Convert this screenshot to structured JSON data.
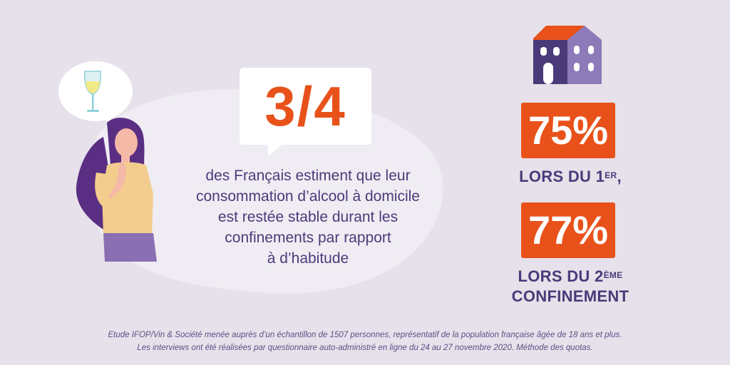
{
  "headline": "3/4",
  "main_text": [
    "des Français estiment que leur",
    "consommation d’alcool à domicile",
    "est restée stable durant les",
    "confinements par rapport",
    "à d’habitude"
  ],
  "stats": [
    {
      "value": "75%",
      "label_prefix": "LORS DU 1",
      "label_sup": "ER",
      "label_suffix": ","
    },
    {
      "value": "77%",
      "label_prefix": "LORS DU 2",
      "label_sup": "ÈME",
      "label_line2": "CONFINEMENT"
    }
  ],
  "footnote": [
    "Etude IFOP/Vin & Société menée auprès d’un échantillon de 1507 personnes, représentatif de la population française âgée de 18 ans et plus.",
    "Les interviews ont été réalisées par questionnaire auto-administré en ligne du 24 au 27 novembre 2020. Méthode des quotas."
  ],
  "colors": {
    "background": "#e6e1ea",
    "accent": "#e8521a",
    "text": "#4b3a7a",
    "blob": "#efedf3"
  },
  "icons": {
    "thought": "wine-glass-icon",
    "house": "house-icon",
    "person": "woman-thinking-illustration"
  }
}
